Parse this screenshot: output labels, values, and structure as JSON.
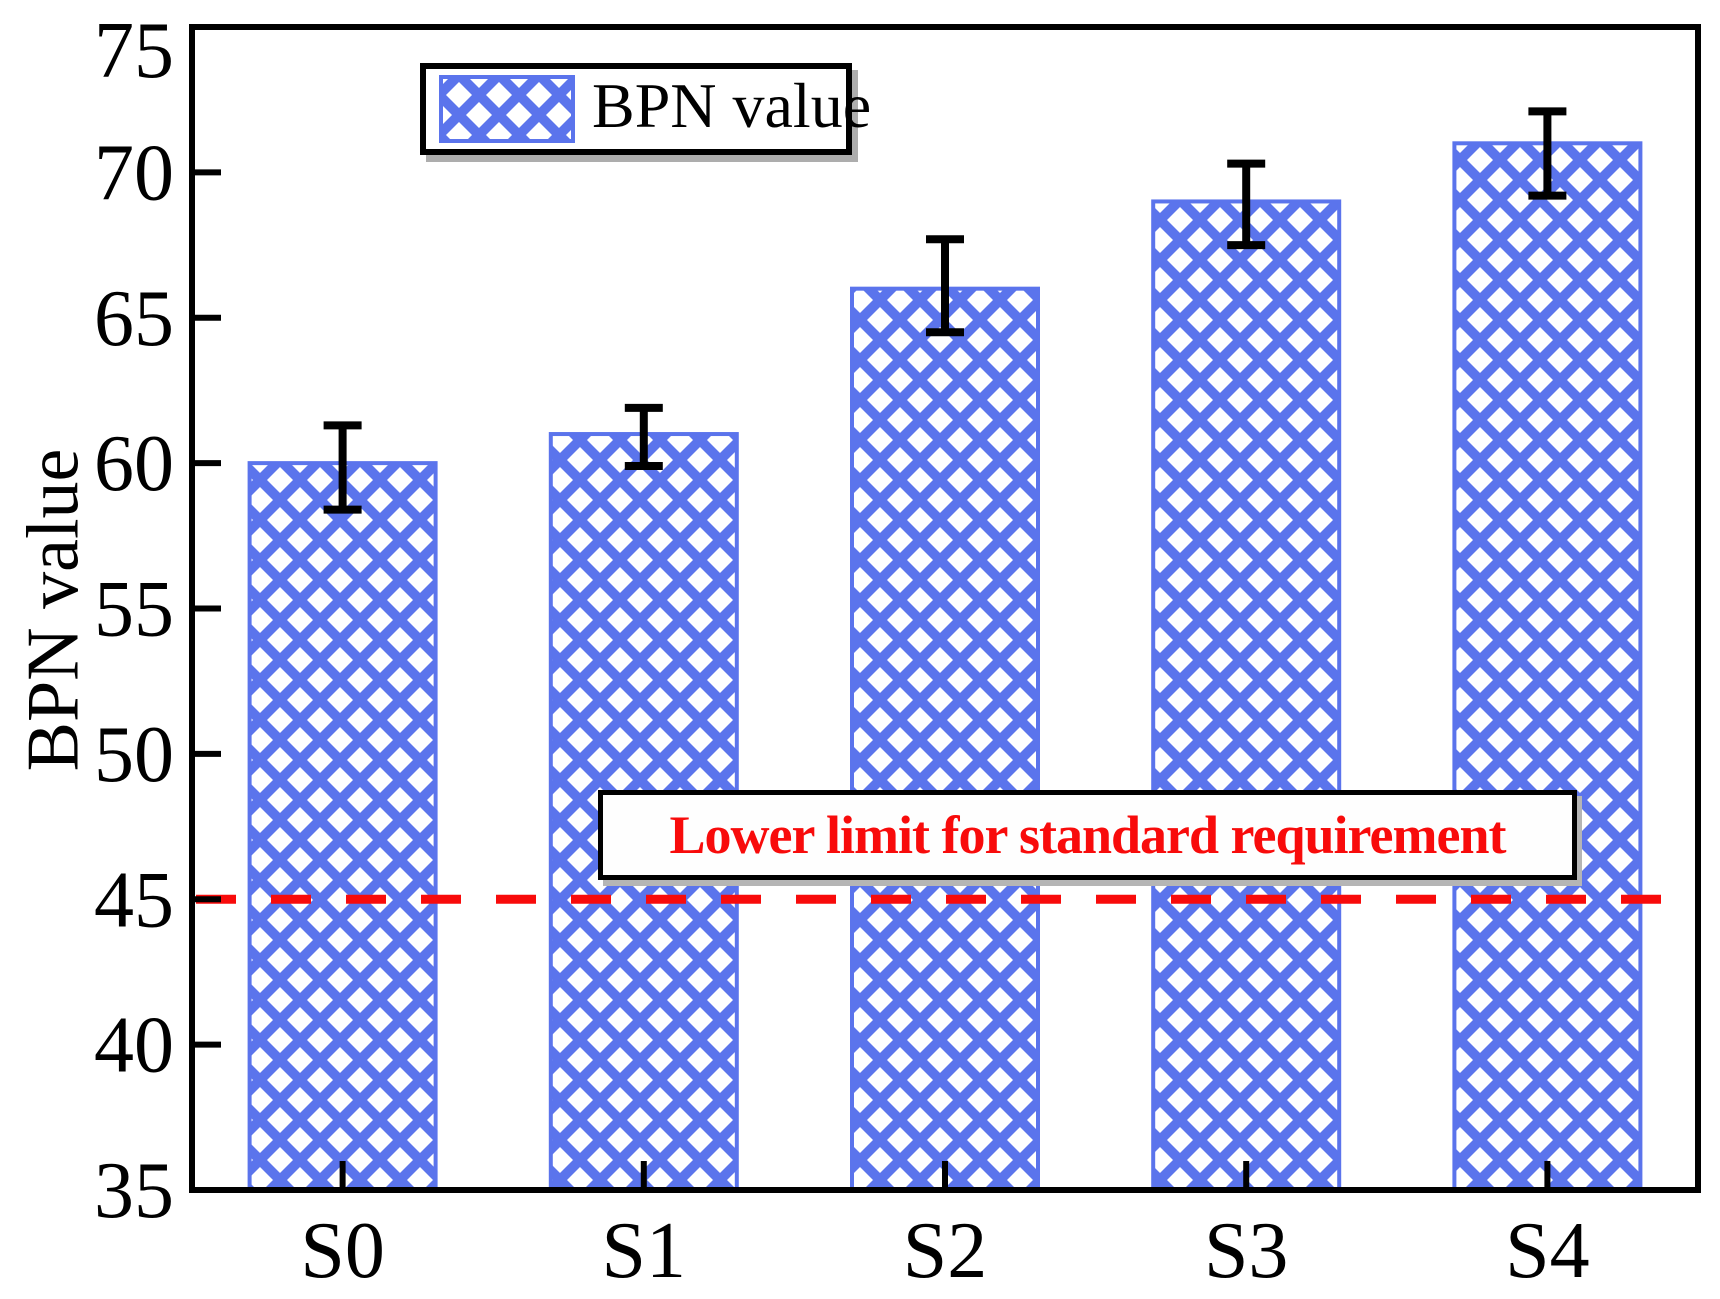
{
  "chart_data": {
    "type": "bar",
    "title": "",
    "categories": [
      "S0",
      "S1",
      "S2",
      "S3",
      "S4"
    ],
    "series": [
      {
        "name": "BPN value",
        "values": [
          60,
          61,
          66,
          69,
          71
        ],
        "errors_plus": [
          1.3,
          0.9,
          1.7,
          1.3,
          1.1
        ],
        "errors_minus": [
          1.6,
          1.1,
          1.5,
          1.5,
          1.8
        ]
      }
    ],
    "xlabel": "",
    "ylabel": "BPN value",
    "ylim": [
      35,
      75
    ],
    "yticks": [
      35,
      40,
      45,
      50,
      55,
      60,
      65,
      70,
      75
    ],
    "grid": false,
    "legend": {
      "label": "BPN value",
      "position": "top-left-inside"
    },
    "reference_line": {
      "y": 45,
      "label": "Lower limit for standard requirement",
      "style": "dashed"
    },
    "colors": {
      "bar_fill": "#5b74ec",
      "bar_hatch": "white-diamond-crosshatch",
      "reference": "#f80b0b",
      "error_bar": "#000000",
      "axis": "#000000"
    }
  }
}
